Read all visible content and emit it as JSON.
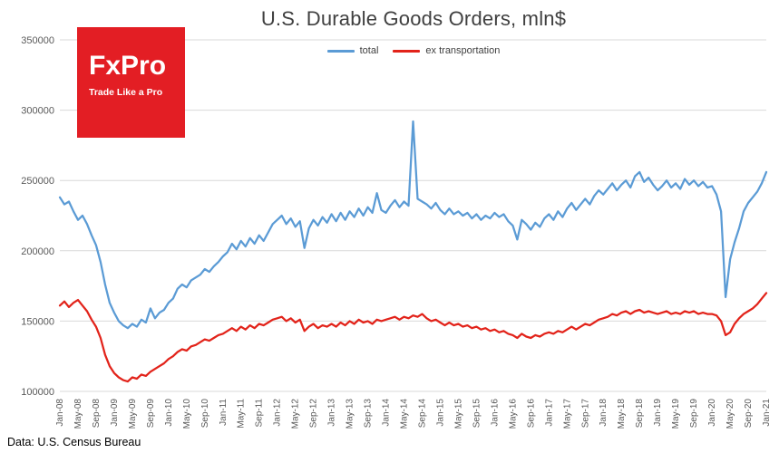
{
  "footer": {
    "source": "Data: U.S. Census Bureau"
  },
  "logo": {
    "brand": "FxPro",
    "tagline": "Trade Like a Pro",
    "background": "#E31E24"
  },
  "chart_data": {
    "type": "line",
    "title": "U.S. Durable Goods Orders, mln$",
    "xlabel": "",
    "ylabel": "",
    "ylim": [
      100000,
      350000
    ],
    "y_ticks": [
      100000,
      150000,
      200000,
      250000,
      300000,
      350000
    ],
    "grid": "horizontal",
    "legend_position": "top-center",
    "x_tick_every": 4,
    "x_tick_labels": [
      "Jan-08",
      "May-08",
      "Sep-08",
      "Jan-09",
      "May-09",
      "Sep-09",
      "Jan-10",
      "May-10",
      "Sep-10",
      "Jan-11",
      "May-11",
      "Sep-11",
      "Jan-12",
      "May-12",
      "Sep-12",
      "Jan-13",
      "May-13",
      "Sep-13",
      "Jan-14",
      "May-14",
      "Sep-14",
      "Jan-15",
      "May-15",
      "Sep-15",
      "Jan-16",
      "May-16",
      "Sep-16",
      "Jan-17",
      "May-17",
      "Sep-17",
      "Jan-18",
      "May-18",
      "Sep-18",
      "Jan-19",
      "May-19",
      "Sep-19",
      "Jan-20",
      "May-20",
      "Sep-20",
      "Jan-21"
    ],
    "series": [
      {
        "name": "total",
        "color": "#5B9BD5",
        "values": [
          238000,
          233000,
          235000,
          228000,
          222000,
          225000,
          219000,
          211000,
          204000,
          192000,
          176000,
          163000,
          156000,
          150000,
          147000,
          145000,
          148000,
          146000,
          151000,
          149000,
          159000,
          152000,
          156000,
          158000,
          163000,
          166000,
          173000,
          176000,
          174000,
          179000,
          181000,
          183000,
          187000,
          185000,
          189000,
          192000,
          196000,
          199000,
          205000,
          201000,
          207000,
          203000,
          209000,
          205000,
          211000,
          207000,
          213000,
          219000,
          222000,
          225000,
          219000,
          223000,
          217000,
          221000,
          202000,
          216000,
          222000,
          218000,
          224000,
          220000,
          226000,
          221000,
          227000,
          222000,
          228000,
          224000,
          230000,
          225000,
          231000,
          227000,
          241000,
          229000,
          227000,
          232000,
          236000,
          231000,
          235000,
          232000,
          292000,
          237000,
          235000,
          233000,
          230000,
          234000,
          229000,
          226000,
          230000,
          226000,
          228000,
          225000,
          227000,
          223000,
          226000,
          222000,
          225000,
          223000,
          227000,
          224000,
          226000,
          221000,
          218000,
          208000,
          222000,
          219000,
          215000,
          220000,
          217000,
          223000,
          226000,
          222000,
          228000,
          224000,
          230000,
          234000,
          229000,
          233000,
          237000,
          233000,
          239000,
          243000,
          240000,
          244000,
          248000,
          243000,
          247000,
          250000,
          245000,
          253000,
          256000,
          249000,
          252000,
          247000,
          243000,
          246000,
          250000,
          245000,
          248000,
          244000,
          251000,
          247000,
          250000,
          246000,
          249000,
          245000,
          246000,
          240000,
          228000,
          167000,
          194000,
          206000,
          216000,
          228000,
          234000,
          238000,
          242000,
          248000,
          256000
        ]
      },
      {
        "name": "ex transportation",
        "color": "#E2231A",
        "values": [
          161000,
          164000,
          160000,
          163000,
          165000,
          161000,
          157000,
          151000,
          146000,
          138000,
          126000,
          118000,
          113000,
          110000,
          108000,
          107000,
          110000,
          109000,
          112000,
          111000,
          114000,
          116000,
          118000,
          120000,
          123000,
          125000,
          128000,
          130000,
          129000,
          132000,
          133000,
          135000,
          137000,
          136000,
          138000,
          140000,
          141000,
          143000,
          145000,
          143000,
          146000,
          144000,
          147000,
          145000,
          148000,
          147000,
          149000,
          151000,
          152000,
          153000,
          150000,
          152000,
          149000,
          151000,
          143000,
          146000,
          148000,
          145000,
          147000,
          146000,
          148000,
          146000,
          149000,
          147000,
          150000,
          148000,
          151000,
          149000,
          150000,
          148000,
          151000,
          150000,
          151000,
          152000,
          153000,
          151000,
          153000,
          152000,
          154000,
          153000,
          155000,
          152000,
          150000,
          151000,
          149000,
          147000,
          149000,
          147000,
          148000,
          146000,
          147000,
          145000,
          146000,
          144000,
          145000,
          143000,
          144000,
          142000,
          143000,
          141000,
          140000,
          138000,
          141000,
          139000,
          138000,
          140000,
          139000,
          141000,
          142000,
          141000,
          143000,
          142000,
          144000,
          146000,
          144000,
          146000,
          148000,
          147000,
          149000,
          151000,
          152000,
          153000,
          155000,
          154000,
          156000,
          157000,
          155000,
          157000,
          158000,
          156000,
          157000,
          156000,
          155000,
          156000,
          157000,
          155000,
          156000,
          155000,
          157000,
          156000,
          157000,
          155000,
          156000,
          155000,
          155000,
          154000,
          150000,
          140000,
          142000,
          148000,
          152000,
          155000,
          157000,
          159000,
          162000,
          166000,
          170000
        ]
      }
    ]
  }
}
